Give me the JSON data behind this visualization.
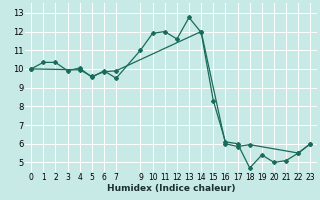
{
  "xlabel": "Humidex (Indice chaleur)",
  "bg_color": "#c8eae6",
  "grid_color": "#ffffff",
  "line_color": "#1a6b5a",
  "xlim": [
    -0.5,
    23.5
  ],
  "ylim": [
    4.5,
    13.5
  ],
  "xticks": [
    0,
    1,
    2,
    3,
    4,
    5,
    6,
    7,
    9,
    10,
    11,
    12,
    13,
    14,
    15,
    16,
    17,
    18,
    19,
    20,
    21,
    22,
    23
  ],
  "yticks": [
    5,
    6,
    7,
    8,
    9,
    10,
    11,
    12,
    13
  ],
  "line1_x": [
    0,
    1,
    2,
    3,
    4,
    5,
    6,
    7,
    9,
    10,
    11,
    12,
    13,
    14,
    15,
    16,
    17,
    18,
    19,
    20,
    21,
    22,
    23
  ],
  "line1_y": [
    10.0,
    10.35,
    10.35,
    9.9,
    10.05,
    9.55,
    9.9,
    9.5,
    11.0,
    11.9,
    12.0,
    11.6,
    12.75,
    11.95,
    8.3,
    6.1,
    6.0,
    4.7,
    5.4,
    5.0,
    5.1,
    5.5,
    6.0
  ],
  "line2_x": [
    0,
    4,
    5,
    6,
    7,
    14,
    16,
    17,
    18,
    22,
    23
  ],
  "line2_y": [
    10.0,
    9.95,
    9.6,
    9.85,
    9.9,
    12.0,
    6.0,
    5.85,
    5.95,
    5.5,
    6.0
  ]
}
